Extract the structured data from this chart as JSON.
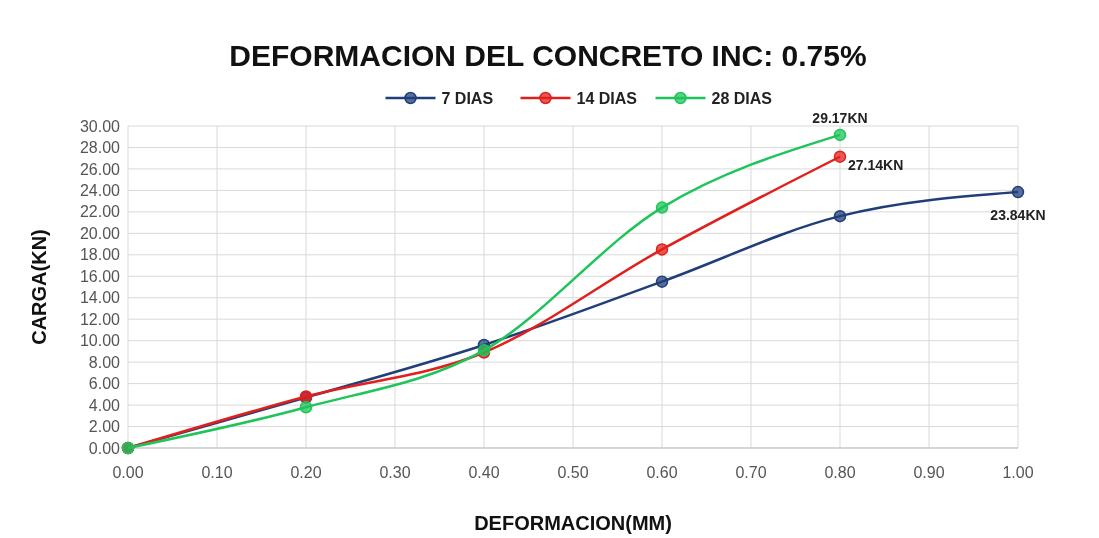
{
  "chart_data": {
    "type": "line",
    "title": "DEFORMACION DEL CONCRETO INC: 0.75%",
    "xlabel": "DEFORMACION(MM)",
    "ylabel": "CARGA(KN)",
    "x": [
      0,
      0.2,
      0.4,
      0.6,
      0.8,
      1.0
    ],
    "series": [
      {
        "name": "7 DIAS",
        "color": "#203f7a",
        "values": [
          0,
          4.7,
          9.6,
          15.5,
          21.6,
          23.84
        ],
        "value_labels": [
          null,
          null,
          null,
          null,
          null,
          "23.84KN"
        ]
      },
      {
        "name": "14 DIAS",
        "color": "#e0201c",
        "values": [
          0,
          4.8,
          8.9,
          18.5,
          27.14,
          null
        ],
        "value_labels": [
          null,
          null,
          null,
          null,
          "27.14KN",
          null
        ]
      },
      {
        "name": "28 DIAS",
        "color": "#1fc45a",
        "values": [
          0,
          3.8,
          9.1,
          22.4,
          29.17,
          null
        ],
        "value_labels": [
          null,
          null,
          null,
          null,
          "29.17KN",
          null
        ]
      }
    ],
    "xlim": [
      0,
      1
    ],
    "xticks": [
      {
        "value": 0,
        "label": "0.00"
      },
      {
        "value": 0.1,
        "label": "0.10"
      },
      {
        "value": 0.2,
        "label": "0.20"
      },
      {
        "value": 0.3,
        "label": "0.30"
      },
      {
        "value": 0.4,
        "label": "0.40"
      },
      {
        "value": 0.5,
        "label": "0.50"
      },
      {
        "value": 0.6,
        "label": "0.60"
      },
      {
        "value": 0.7,
        "label": "0.70"
      },
      {
        "value": 0.8,
        "label": "0.80"
      },
      {
        "value": 0.9,
        "label": "0.90"
      },
      {
        "value": 1,
        "label": "1.00"
      }
    ],
    "ylim": [
      0,
      30
    ],
    "yticks": [
      {
        "value": 0,
        "label": "0.00"
      },
      {
        "value": 2,
        "label": "2.00"
      },
      {
        "value": 4,
        "label": "4.00"
      },
      {
        "value": 6,
        "label": "6.00"
      },
      {
        "value": 8,
        "label": "8.00"
      },
      {
        "value": 10,
        "label": "10.00"
      },
      {
        "value": 12,
        "label": "12.00"
      },
      {
        "value": 14,
        "label": "14.00"
      },
      {
        "value": 16,
        "label": "16.00"
      },
      {
        "value": 18,
        "label": "18.00"
      },
      {
        "value": 20,
        "label": "20.00"
      },
      {
        "value": 22,
        "label": "22.00"
      },
      {
        "value": 24,
        "label": "24.00"
      },
      {
        "value": 26,
        "label": "26.00"
      },
      {
        "value": 28,
        "label": "28.00"
      },
      {
        "value": 30,
        "label": "30.00"
      }
    ],
    "grid": true,
    "legend": "top",
    "marker": "circle",
    "line_style": "solid"
  }
}
